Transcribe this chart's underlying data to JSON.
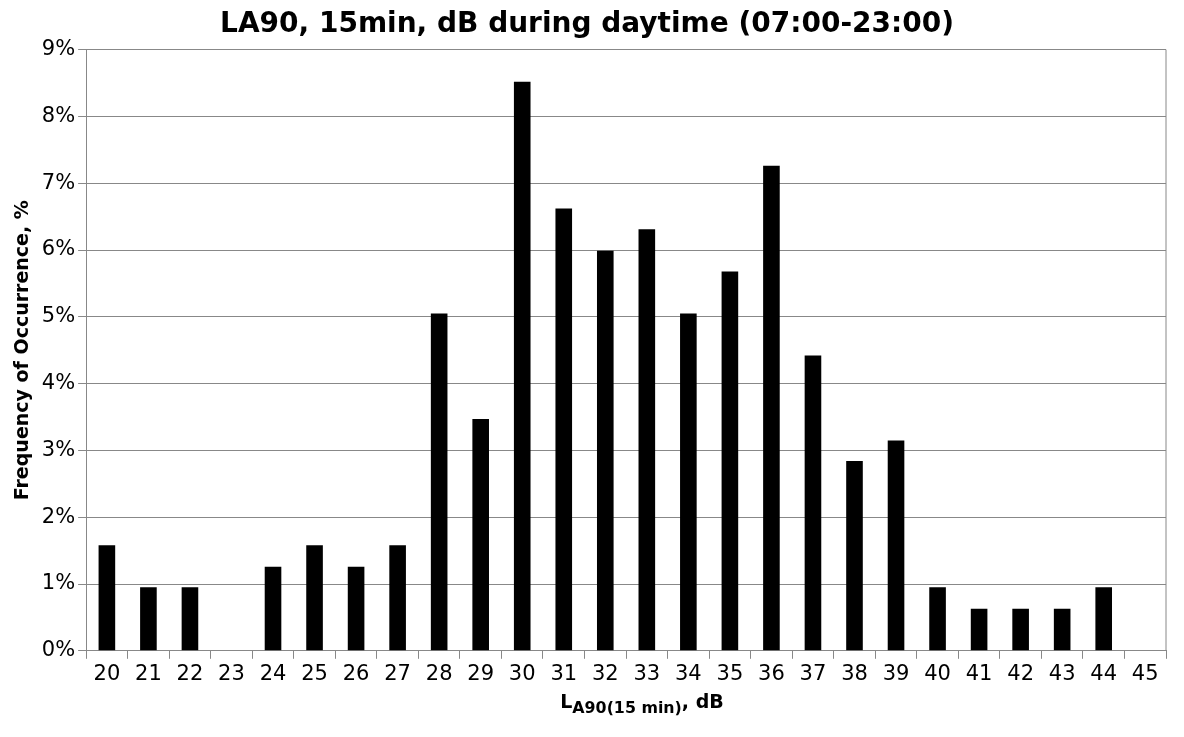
{
  "chart_data": {
    "type": "bar",
    "title": "LA90, 15min, dB during daytime (07:00-23:00)",
    "xlabel": "L$_{A90(15 min)}$, dB",
    "ylabel": "Frequency of Occurrence, %",
    "categories": [
      "20",
      "21",
      "22",
      "23",
      "24",
      "25",
      "26",
      "27",
      "28",
      "29",
      "30",
      "31",
      "32",
      "33",
      "34",
      "35",
      "36",
      "37",
      "38",
      "39",
      "40",
      "41",
      "42",
      "43",
      "44",
      "45"
    ],
    "values": [
      1.58,
      0.95,
      0.95,
      0,
      1.26,
      1.58,
      1.26,
      1.58,
      5.05,
      3.47,
      8.52,
      6.62,
      5.99,
      6.31,
      5.05,
      5.68,
      7.26,
      4.42,
      2.84,
      3.15,
      0.95,
      0.63,
      0.63,
      0.63,
      0.95,
      0
    ],
    "color": "#000000",
    "ylim": [
      0,
      9
    ],
    "yticks": [
      {
        "value": 0,
        "label": "0%"
      },
      {
        "value": 1,
        "label": "1%"
      },
      {
        "value": 2,
        "label": "2%"
      },
      {
        "value": 3,
        "label": "3%"
      },
      {
        "value": 4,
        "label": "4%"
      },
      {
        "value": 5,
        "label": "5%"
      },
      {
        "value": 6,
        "label": "6%"
      },
      {
        "value": 7,
        "label": "7%"
      },
      {
        "value": 8,
        "label": "8%"
      },
      {
        "value": 9,
        "label": "9%"
      }
    ],
    "grid": "y",
    "legend": false
  }
}
